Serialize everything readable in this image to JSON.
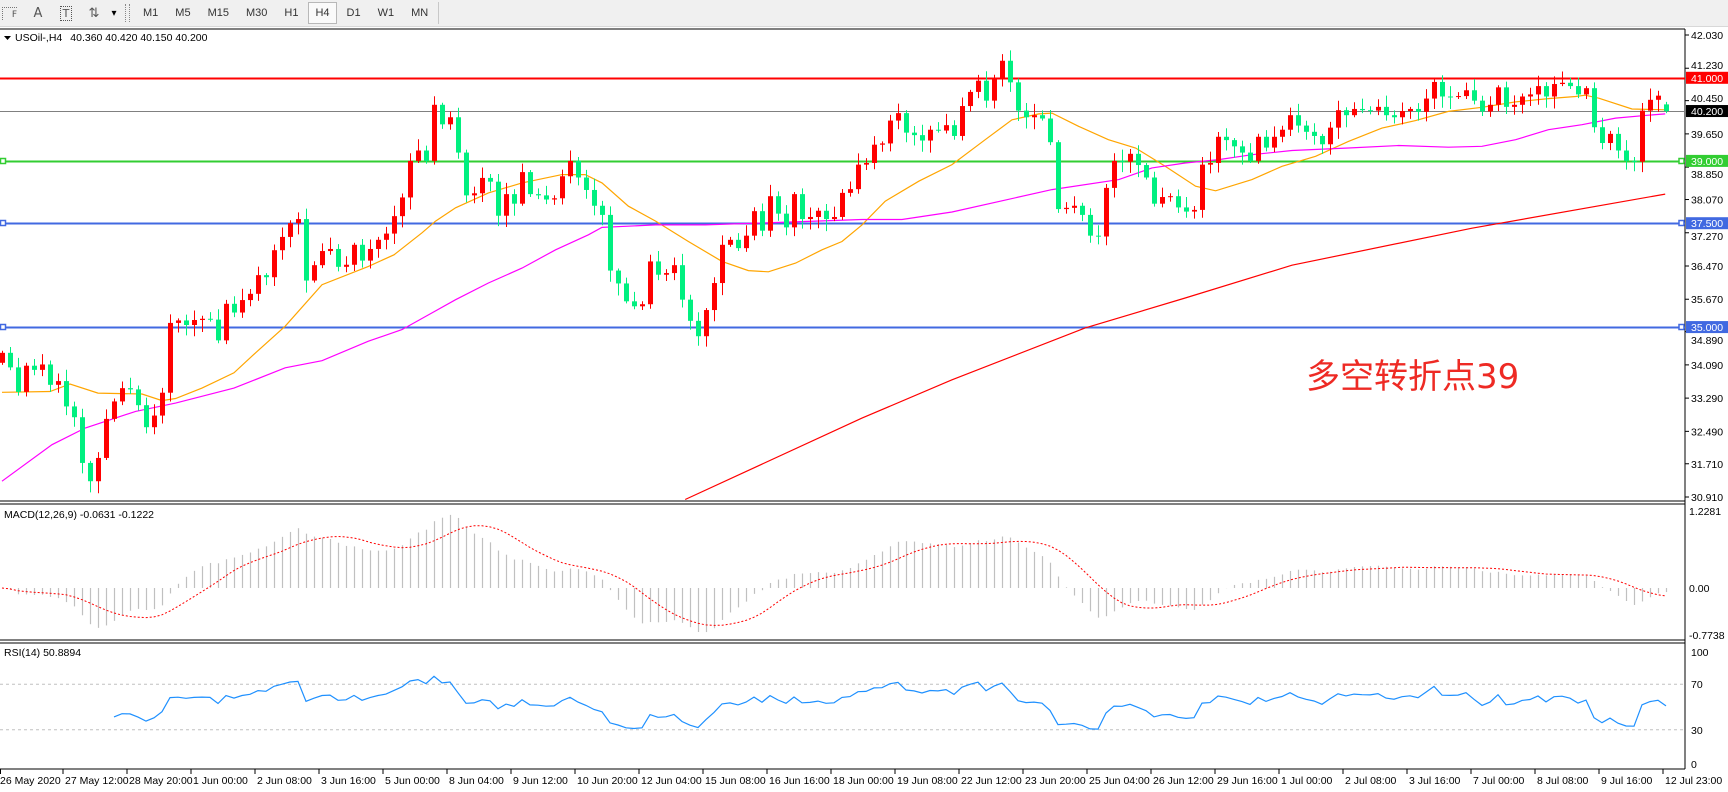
{
  "toolbar": {
    "tools": [
      {
        "icon": "fibonacci-fan-icon",
        "glyph": "F"
      },
      {
        "icon": "text-icon",
        "glyph": "A"
      },
      {
        "icon": "text-label-icon",
        "glyph": "T"
      },
      {
        "icon": "arrows-icon",
        "glyph": "⇅"
      }
    ],
    "dropdown_glyph": "▾",
    "timeframes": [
      "M1",
      "M5",
      "M15",
      "M30",
      "H1",
      "H4",
      "D1",
      "W1",
      "MN"
    ],
    "active_timeframe": "H4"
  },
  "chart_data": {
    "type": "candlestick",
    "symbol": "USOil-,H4",
    "ohlc_readout": "40.360 40.420 40.150 40.200",
    "up_color": "#ff0000",
    "down_color": "#00f080",
    "first_open": 34.14,
    "last_ohlc": [
      40.36,
      40.42,
      40.15,
      40.2
    ],
    "closes": [
      34.38,
      34.03,
      33.44,
      34.07,
      33.97,
      34.1,
      33.61,
      33.7,
      33.09,
      32.83,
      31.73,
      31.29,
      31.85,
      32.79,
      33.21,
      33.53,
      33.5,
      33.12,
      32.59,
      32.87,
      33.42,
      35.1,
      35.16,
      35.05,
      35.17,
      35.2,
      35.18,
      34.68,
      35.56,
      35.35,
      35.65,
      35.8,
      36.25,
      36.2,
      36.85,
      37.17,
      37.5,
      37.6,
      36.12,
      36.49,
      36.83,
      36.88,
      36.45,
      36.5,
      36.98,
      36.6,
      36.88,
      37.1,
      37.25,
      37.67,
      38.12,
      39.0,
      39.25,
      39.0,
      40.35,
      39.88,
      40.05,
      39.2,
      38.17,
      38.22,
      38.59,
      38.5,
      37.68,
      38.2,
      37.97,
      38.73,
      38.2,
      38.17,
      38.07,
      38.1,
      38.63,
      39.0,
      38.6,
      38.3,
      37.92,
      37.7,
      36.36,
      36.05,
      35.62,
      35.5,
      35.55,
      36.58,
      36.26,
      36.3,
      36.49,
      35.66,
      35.15,
      34.78,
      35.41,
      36.06,
      36.98,
      37.1,
      36.9,
      37.2,
      37.79,
      37.32,
      38.15,
      37.73,
      37.4,
      38.2,
      37.6,
      37.65,
      37.8,
      37.6,
      37.65,
      38.23,
      38.32,
      38.91,
      38.95,
      39.39,
      39.42,
      39.97,
      40.15,
      39.68,
      39.62,
      39.49,
      39.75,
      39.73,
      39.86,
      39.6,
      40.32,
      40.66,
      40.93,
      40.45,
      41.0,
      41.41,
      40.89,
      40.21,
      40.05,
      40.1,
      40.02,
      39.45,
      37.84,
      37.87,
      37.92,
      37.7,
      37.2,
      37.18,
      38.35,
      39.0,
      38.98,
      39.17,
      38.9,
      38.6,
      37.97,
      38.13,
      38.15,
      37.88,
      37.78,
      37.82,
      38.91,
      38.95,
      39.58,
      39.5,
      39.35,
      39.2,
      39.0,
      39.58,
      39.32,
      39.58,
      39.75,
      40.1,
      39.85,
      39.7,
      39.6,
      39.4,
      39.8,
      40.22,
      40.1,
      40.25,
      40.22,
      40.21,
      40.3,
      40.1,
      40.05,
      40.2,
      40.25,
      40.18,
      40.5,
      40.9,
      40.55,
      40.54,
      40.56,
      40.7,
      40.45,
      40.19,
      40.35,
      40.77,
      40.3,
      40.35,
      40.55,
      40.6,
      40.8,
      40.55,
      40.85,
      40.88,
      40.8,
      40.6,
      40.75,
      39.81,
      39.43,
      39.65,
      39.25,
      39.0,
      38.98,
      40.21,
      40.47,
      40.57,
      40.2
    ],
    "moving_averages": [
      {
        "color": "#ffa500",
        "points": [
          [
            0,
            33.43
          ],
          [
            6,
            33.45
          ],
          [
            8.5,
            33.63
          ],
          [
            12,
            33.41
          ],
          [
            17.5,
            33.39
          ],
          [
            20,
            33.23
          ],
          [
            21.7,
            33.28
          ],
          [
            25,
            33.53
          ],
          [
            29,
            33.9
          ],
          [
            31.7,
            34.38
          ],
          [
            35.4,
            35.02
          ],
          [
            40,
            36.02
          ],
          [
            45.8,
            36.46
          ],
          [
            49,
            36.74
          ],
          [
            52.5,
            37.27
          ],
          [
            54.2,
            37.55
          ],
          [
            56.7,
            37.87
          ],
          [
            60.8,
            38.23
          ],
          [
            65,
            38.47
          ],
          [
            70,
            38.67
          ],
          [
            72.9,
            38.67
          ],
          [
            75,
            38.47
          ],
          [
            78.3,
            37.91
          ],
          [
            81.7,
            37.55
          ],
          [
            85.8,
            37.06
          ],
          [
            90,
            36.58
          ],
          [
            93.3,
            36.36
          ],
          [
            95.8,
            36.33
          ],
          [
            99.2,
            36.54
          ],
          [
            102.5,
            36.86
          ],
          [
            105,
            37.06
          ],
          [
            107.5,
            37.46
          ],
          [
            110.4,
            38.03
          ],
          [
            114.6,
            38.51
          ],
          [
            118.75,
            38.91
          ],
          [
            122.9,
            39.51
          ],
          [
            126.25,
            39.99
          ],
          [
            129.6,
            40.13
          ],
          [
            131.25,
            40.15
          ],
          [
            134.6,
            39.83
          ],
          [
            138.3,
            39.51
          ],
          [
            141.7,
            39.31
          ],
          [
            145.4,
            38.87
          ],
          [
            149.2,
            38.39
          ],
          [
            151.7,
            38.28
          ],
          [
            156.25,
            38.55
          ],
          [
            160,
            38.87
          ],
          [
            164.2,
            39.11
          ],
          [
            168.3,
            39.47
          ],
          [
            172.5,
            39.79
          ],
          [
            176.7,
            39.97
          ],
          [
            180.8,
            40.19
          ],
          [
            185,
            40.29
          ],
          [
            189.2,
            40.42
          ],
          [
            193.3,
            40.5
          ],
          [
            196.7,
            40.55
          ],
          [
            197.9,
            40.58
          ],
          [
            199.6,
            40.51
          ],
          [
            203.75,
            40.25
          ],
          [
            207.9,
            40.23
          ]
        ]
      },
      {
        "color": "#ff00ff",
        "points": [
          [
            0,
            31.29
          ],
          [
            6.25,
            32.17
          ],
          [
            10.4,
            32.57
          ],
          [
            16.7,
            32.97
          ],
          [
            21.7,
            33.17
          ],
          [
            29,
            33.53
          ],
          [
            35.4,
            34.02
          ],
          [
            40,
            34.19
          ],
          [
            45.8,
            34.66
          ],
          [
            50,
            34.94
          ],
          [
            53.75,
            35.34
          ],
          [
            56.7,
            35.66
          ],
          [
            60.8,
            36.06
          ],
          [
            65,
            36.42
          ],
          [
            69.2,
            36.86
          ],
          [
            73.3,
            37.22
          ],
          [
            75,
            37.4
          ],
          [
            81.7,
            37.46
          ],
          [
            87.9,
            37.46
          ],
          [
            94.2,
            37.5
          ],
          [
            107.5,
            37.59
          ],
          [
            112.5,
            37.59
          ],
          [
            118.75,
            37.77
          ],
          [
            125,
            38.04
          ],
          [
            131.25,
            38.31
          ],
          [
            139.6,
            38.55
          ],
          [
            143.75,
            38.83
          ],
          [
            147.9,
            38.95
          ],
          [
            152.1,
            39.03
          ],
          [
            156.25,
            39.15
          ],
          [
            161.25,
            39.25
          ],
          [
            168.3,
            39.31
          ],
          [
            174.6,
            39.37
          ],
          [
            180.8,
            39.33
          ],
          [
            185,
            39.35
          ],
          [
            189.2,
            39.51
          ],
          [
            193.3,
            39.75
          ],
          [
            197.5,
            39.87
          ],
          [
            201.7,
            40.03
          ],
          [
            205.8,
            40.1
          ],
          [
            207.9,
            40.13
          ]
        ]
      },
      {
        "color": "#ff0000",
        "points": [
          [
            85.4,
            30.85
          ],
          [
            107.5,
            32.81
          ],
          [
            118.75,
            33.73
          ],
          [
            135.4,
            34.98
          ],
          [
            147.9,
            35.7
          ],
          [
            161.25,
            36.49
          ],
          [
            183.75,
            37.38
          ],
          [
            207.9,
            38.2
          ]
        ]
      }
    ],
    "horizontal_lines": [
      {
        "price": 41.0,
        "label": "41.000",
        "color": "#ff0000",
        "label_bg": "#ff0000",
        "label_fg": "#ffffff",
        "handles": false
      },
      {
        "price": 40.2,
        "label": "40.200",
        "color": "#808080",
        "label_bg": "#000000",
        "label_fg": "#ffffff",
        "handles": false
      },
      {
        "price": 39.0,
        "label": "39.000",
        "color": "#32cd32",
        "label_bg": "#32cd32",
        "label_fg": "#ffffff",
        "handles": true
      },
      {
        "price": 37.5,
        "label": "37.500",
        "color": "#4169e1",
        "label_bg": "#4169e1",
        "label_fg": "#ffffff",
        "handles": true
      },
      {
        "price": 35.0,
        "label": "35.000",
        "color": "#4169e1",
        "label_bg": "#4169e1",
        "label_fg": "#ffffff",
        "handles": true
      }
    ],
    "y_range": [
      30.91,
      42.03
    ],
    "price_ticks": [
      "42.030",
      "41.230",
      "40.450",
      "39.650",
      "38.850",
      "38.070",
      "37.270",
      "36.470",
      "35.670",
      "34.890",
      "34.090",
      "33.290",
      "32.490",
      "31.710",
      "30.910"
    ],
    "time_labels": [
      "26 May 2020",
      "27 May 12:00",
      "28 May 20:00",
      "1 Jun 00:00",
      "2 Jun 08:00",
      "3 Jun 16:00",
      "5 Jun 00:00",
      "8 Jun 04:00",
      "9 Jun 12:00",
      "10 Jun 20:00",
      "12 Jun 04:00",
      "15 Jun 08:00",
      "16 Jun 16:00",
      "18 Jun 00:00",
      "19 Jun 08:00",
      "22 Jun 12:00",
      "23 Jun 20:00",
      "25 Jun 04:00",
      "26 Jun 12:00",
      "29 Jun 16:00",
      "1 Jul 00:00",
      "2 Jul 08:00",
      "3 Jul 16:00",
      "7 Jul 00:00",
      "8 Jul 08:00",
      "9 Jul 16:00",
      "12 Jul 23:00"
    ],
    "annotation": "多空转折点39",
    "annotation_color": "#ee2a24",
    "macd": {
      "label": "MACD(12,26,9) -0.0631 -0.1222",
      "range": [
        -0.7738,
        1.2281
      ],
      "ticks": [
        "1.2281",
        "0.00",
        "-0.7738"
      ],
      "histogram_color": "#c0c0c0",
      "signal_color": "#ff0000"
    },
    "rsi": {
      "label": "RSI(14) 50.8894",
      "range": [
        0,
        100
      ],
      "ticks": [
        "100",
        "70",
        "30",
        "0"
      ],
      "levels": [
        70,
        30
      ],
      "color": "#1e90ff"
    }
  }
}
